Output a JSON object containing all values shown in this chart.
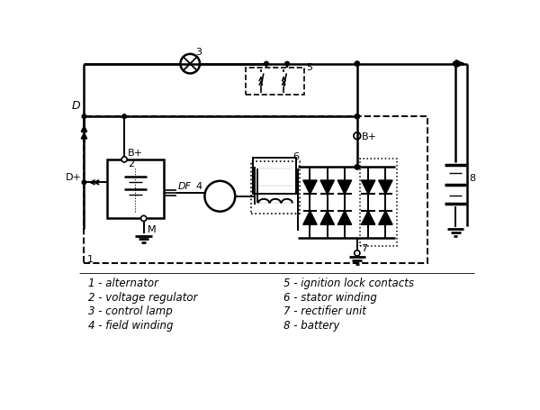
{
  "bg_color": "#ffffff",
  "line_color": "#000000",
  "fig_width": 6.0,
  "fig_height": 4.56,
  "dpi": 100,
  "legend_left": [
    "1 - alternator",
    "2 - voltage regulator",
    "3 - control lamp",
    "4 - field winding"
  ],
  "legend_right": [
    "5 - ignition lock contacts",
    "6 - stator winding",
    "7 - rectifier unit",
    "8 - battery"
  ]
}
